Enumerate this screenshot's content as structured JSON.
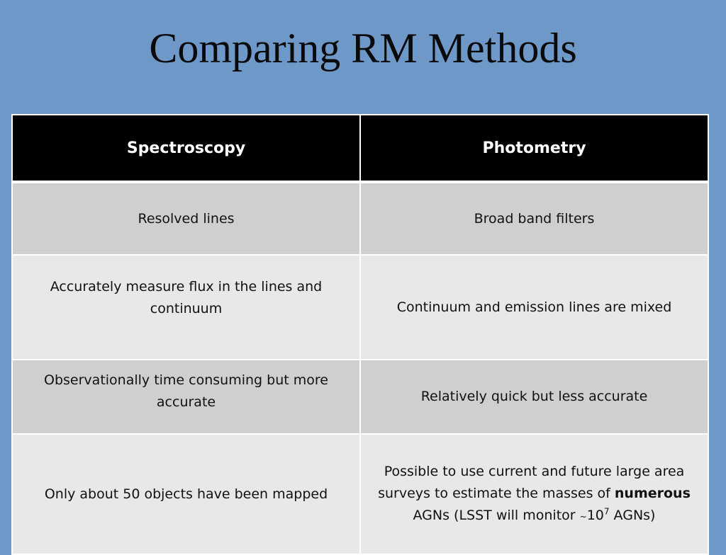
{
  "slide": {
    "title": "Comparing RM Methods"
  },
  "table": {
    "headers": [
      "Spectroscopy",
      "Photometry"
    ],
    "rows": [
      [
        "Resolved lines",
        "Broad band filters"
      ],
      [
        "Accurately measure flux in the lines and continuum",
        "Continuum and emission lines  are mixed"
      ],
      [
        "Observationally time consuming but more accurate",
        "Relatively quick but less accurate"
      ],
      [
        "Only about 50 objects have been mapped",
        ""
      ]
    ],
    "last_right_cell": {
      "text_before": "Possible to use current and future large area surveys to estimate the masses of ",
      "bold_word": "numerous",
      "text_middle": " AGNs (LSST will monitor ",
      "tilde": "~",
      "base": "10",
      "exponent": "7",
      "text_after": " AGNs)"
    }
  },
  "colors": {
    "background": "#6d98c8",
    "header_bg": "#000000",
    "row_dark": "#cfcfcf",
    "row_light": "#e8e8e8"
  }
}
